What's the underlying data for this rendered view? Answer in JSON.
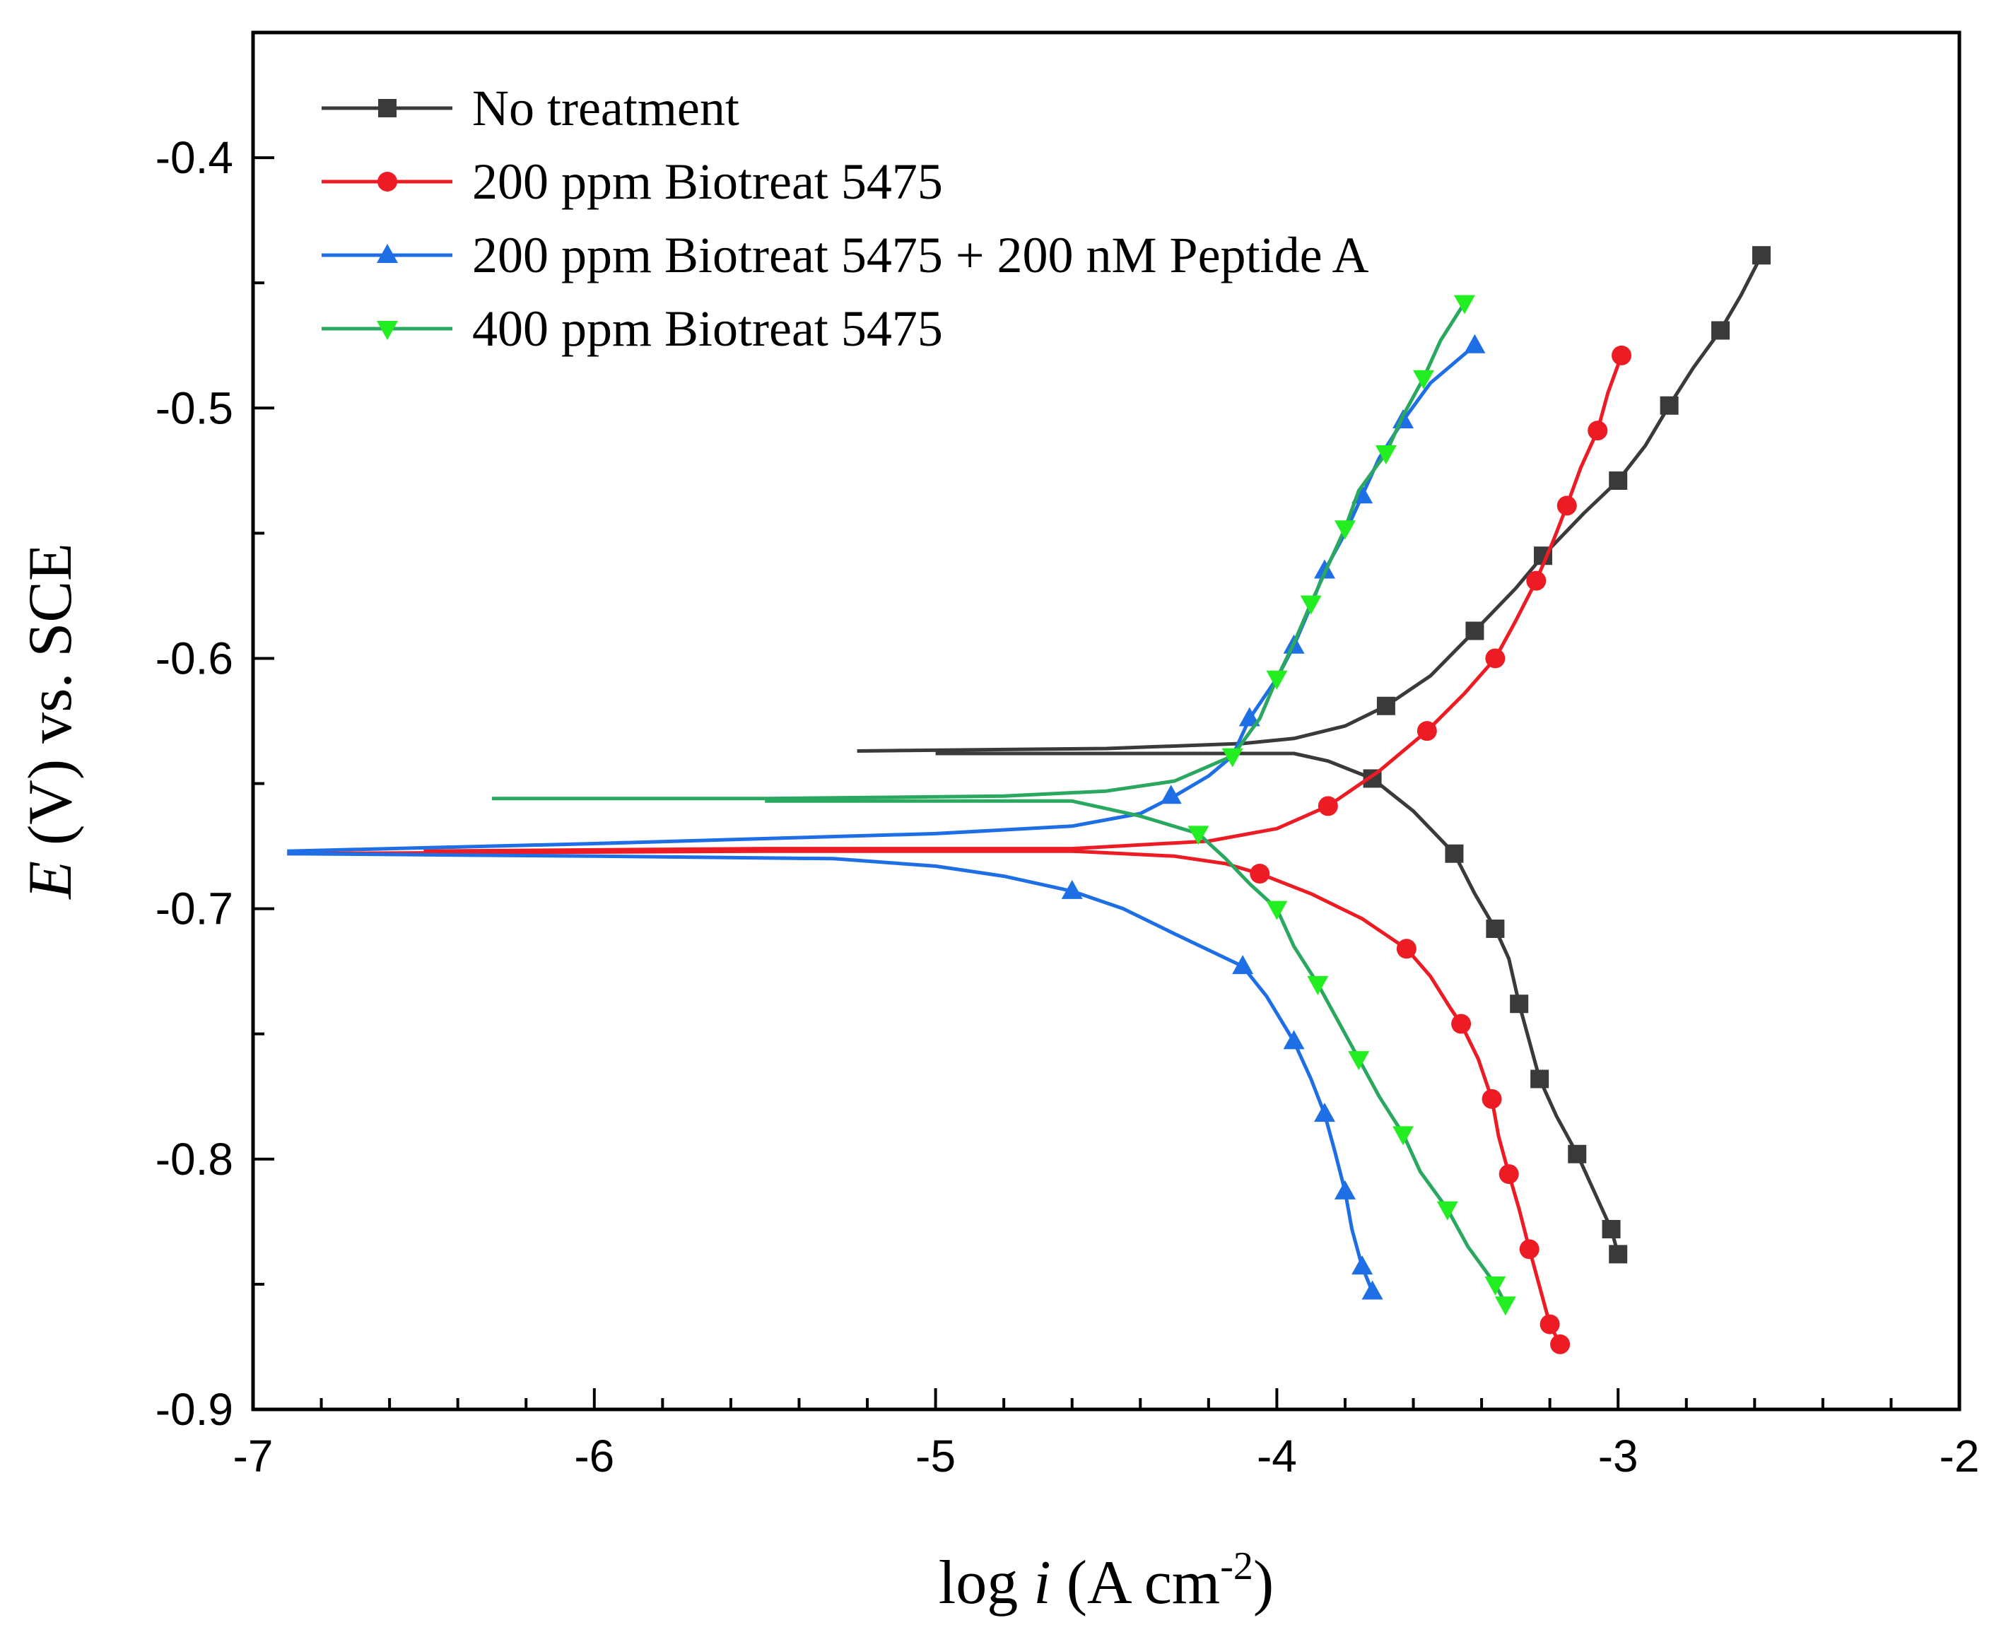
{
  "chart_data": {
    "type": "line",
    "title": "",
    "xlabel": {
      "prefix": "log ",
      "var": "i",
      "unit_open": " (A cm",
      "sup": "-2",
      "unit_close": ")"
    },
    "ylabel": {
      "var": "E",
      "rest": " (V) vs. SCE"
    },
    "xlim": [
      -7,
      -2
    ],
    "ylim": [
      -0.9,
      -0.35
    ],
    "xticks": [
      -7,
      -6,
      -5,
      -4,
      -3,
      -2
    ],
    "xtick_labels": [
      "-7",
      "-6",
      "-5",
      "-4",
      "-3",
      "-2"
    ],
    "yticks": [
      -0.9,
      -0.8,
      -0.7,
      -0.6,
      -0.5,
      -0.4
    ],
    "ytick_labels": [
      "-0.9",
      "-0.8",
      "-0.7",
      "-0.6",
      "-0.5",
      "-0.4"
    ],
    "legend_position": "top-left",
    "series": [
      {
        "name": "No treatment",
        "color": "#3a3a3a",
        "marker": "square",
        "anodic": [
          [
            -5.23,
            -0.637
          ],
          [
            -4.5,
            -0.636
          ],
          [
            -4.1,
            -0.634
          ],
          [
            -3.95,
            -0.632
          ],
          [
            -3.8,
            -0.627
          ],
          [
            -3.68,
            -0.619
          ],
          [
            -3.55,
            -0.607
          ],
          [
            -3.42,
            -0.589
          ],
          [
            -3.3,
            -0.572
          ],
          [
            -3.22,
            -0.559
          ],
          [
            -3.1,
            -0.542
          ],
          [
            -3.0,
            -0.529
          ],
          [
            -2.92,
            -0.515
          ],
          [
            -2.85,
            -0.499
          ],
          [
            -2.78,
            -0.484
          ],
          [
            -2.7,
            -0.469
          ],
          [
            -2.64,
            -0.455
          ],
          [
            -2.58,
            -0.439
          ]
        ],
        "cathodic": [
          [
            -5.0,
            -0.638
          ],
          [
            -4.5,
            -0.638
          ],
          [
            -4.1,
            -0.638
          ],
          [
            -3.95,
            -0.638
          ],
          [
            -3.85,
            -0.641
          ],
          [
            -3.72,
            -0.648
          ],
          [
            -3.6,
            -0.661
          ],
          [
            -3.48,
            -0.678
          ],
          [
            -3.42,
            -0.694
          ],
          [
            -3.36,
            -0.708
          ],
          [
            -3.32,
            -0.72
          ],
          [
            -3.29,
            -0.738
          ],
          [
            -3.26,
            -0.753
          ],
          [
            -3.23,
            -0.768
          ],
          [
            -3.18,
            -0.783
          ],
          [
            -3.12,
            -0.798
          ],
          [
            -3.07,
            -0.813
          ],
          [
            -3.02,
            -0.828
          ],
          [
            -3.0,
            -0.838
          ]
        ],
        "markers": [
          [
            -2.58,
            -0.439
          ],
          [
            -2.7,
            -0.469
          ],
          [
            -2.85,
            -0.499
          ],
          [
            -3.0,
            -0.529
          ],
          [
            -3.22,
            -0.559
          ],
          [
            -3.42,
            -0.589
          ],
          [
            -3.68,
            -0.619
          ],
          [
            -3.72,
            -0.648
          ],
          [
            -3.48,
            -0.678
          ],
          [
            -3.36,
            -0.708
          ],
          [
            -3.29,
            -0.738
          ],
          [
            -3.23,
            -0.768
          ],
          [
            -3.12,
            -0.798
          ],
          [
            -3.02,
            -0.828
          ],
          [
            -3.0,
            -0.838
          ]
        ]
      },
      {
        "name": "200 ppm Biotreat 5475",
        "color": "#ed1c24",
        "marker": "circle",
        "anodic": [
          [
            -6.5,
            -0.677
          ],
          [
            -5.5,
            -0.676
          ],
          [
            -4.6,
            -0.676
          ],
          [
            -4.2,
            -0.673
          ],
          [
            -4.0,
            -0.668
          ],
          [
            -3.85,
            -0.659
          ],
          [
            -3.7,
            -0.645
          ],
          [
            -3.56,
            -0.629
          ],
          [
            -3.45,
            -0.614
          ],
          [
            -3.36,
            -0.6
          ],
          [
            -3.3,
            -0.585
          ],
          [
            -3.24,
            -0.569
          ],
          [
            -3.19,
            -0.553
          ],
          [
            -3.15,
            -0.539
          ],
          [
            -3.11,
            -0.524
          ],
          [
            -3.06,
            -0.509
          ],
          [
            -3.03,
            -0.494
          ],
          [
            -2.99,
            -0.479
          ]
        ],
        "cathodic": [
          [
            -6.9,
            -0.678
          ],
          [
            -5.5,
            -0.677
          ],
          [
            -4.6,
            -0.677
          ],
          [
            -4.3,
            -0.679
          ],
          [
            -4.15,
            -0.682
          ],
          [
            -4.05,
            -0.686
          ],
          [
            -3.9,
            -0.694
          ],
          [
            -3.75,
            -0.704
          ],
          [
            -3.62,
            -0.716
          ],
          [
            -3.55,
            -0.727
          ],
          [
            -3.49,
            -0.74
          ],
          [
            -3.46,
            -0.746
          ],
          [
            -3.41,
            -0.76
          ],
          [
            -3.37,
            -0.776
          ],
          [
            -3.35,
            -0.791
          ],
          [
            -3.32,
            -0.806
          ],
          [
            -3.29,
            -0.82
          ],
          [
            -3.26,
            -0.836
          ],
          [
            -3.23,
            -0.851
          ],
          [
            -3.2,
            -0.866
          ],
          [
            -3.17,
            -0.874
          ]
        ],
        "markers": [
          [
            -2.99,
            -0.479
          ],
          [
            -3.06,
            -0.509
          ],
          [
            -3.15,
            -0.539
          ],
          [
            -3.24,
            -0.569
          ],
          [
            -3.36,
            -0.6
          ],
          [
            -3.56,
            -0.629
          ],
          [
            -3.85,
            -0.659
          ],
          [
            -4.05,
            -0.686
          ],
          [
            -3.62,
            -0.716
          ],
          [
            -3.46,
            -0.746
          ],
          [
            -3.37,
            -0.776
          ],
          [
            -3.32,
            -0.806
          ],
          [
            -3.26,
            -0.836
          ],
          [
            -3.2,
            -0.866
          ],
          [
            -3.17,
            -0.874
          ]
        ]
      },
      {
        "name": "200 ppm Biotreat 5475 + 200 nM Peptide A",
        "color": "#1e6fe6",
        "marker": "triangle-up",
        "anodic": [
          [
            -6.9,
            -0.677
          ],
          [
            -6.0,
            -0.674
          ],
          [
            -5.0,
            -0.67
          ],
          [
            -4.6,
            -0.667
          ],
          [
            -4.4,
            -0.662
          ],
          [
            -4.3,
            -0.655
          ],
          [
            -4.2,
            -0.647
          ],
          [
            -4.13,
            -0.639
          ],
          [
            -4.08,
            -0.624
          ],
          [
            -4.0,
            -0.608
          ],
          [
            -3.95,
            -0.595
          ],
          [
            -3.9,
            -0.579
          ],
          [
            -3.86,
            -0.565
          ],
          [
            -3.8,
            -0.55
          ],
          [
            -3.75,
            -0.535
          ],
          [
            -3.7,
            -0.52
          ],
          [
            -3.63,
            -0.505
          ],
          [
            -3.55,
            -0.49
          ],
          [
            -3.42,
            -0.475
          ]
        ],
        "cathodic": [
          [
            -6.9,
            -0.678
          ],
          [
            -6.0,
            -0.679
          ],
          [
            -5.3,
            -0.68
          ],
          [
            -5.0,
            -0.683
          ],
          [
            -4.8,
            -0.687
          ],
          [
            -4.6,
            -0.693
          ],
          [
            -4.45,
            -0.7
          ],
          [
            -4.3,
            -0.71
          ],
          [
            -4.1,
            -0.723
          ],
          [
            -4.03,
            -0.735
          ],
          [
            -3.95,
            -0.753
          ],
          [
            -3.9,
            -0.768
          ],
          [
            -3.86,
            -0.782
          ],
          [
            -3.83,
            -0.797
          ],
          [
            -3.8,
            -0.813
          ],
          [
            -3.78,
            -0.828
          ],
          [
            -3.75,
            -0.843
          ],
          [
            -3.72,
            -0.853
          ]
        ],
        "markers": [
          [
            -3.42,
            -0.475
          ],
          [
            -3.63,
            -0.505
          ],
          [
            -3.75,
            -0.535
          ],
          [
            -3.86,
            -0.565
          ],
          [
            -3.95,
            -0.595
          ],
          [
            -4.08,
            -0.624
          ],
          [
            -4.31,
            -0.655
          ],
          [
            -4.6,
            -0.693
          ],
          [
            -4.1,
            -0.723
          ],
          [
            -3.95,
            -0.753
          ],
          [
            -3.86,
            -0.782
          ],
          [
            -3.8,
            -0.813
          ],
          [
            -3.75,
            -0.843
          ],
          [
            -3.72,
            -0.853
          ]
        ]
      },
      {
        "name": "400 ppm Biotreat 5475",
        "color": "#2aa860",
        "marker_color": "#22ee22",
        "marker": "triangle-down",
        "anodic": [
          [
            -6.3,
            -0.656
          ],
          [
            -5.5,
            -0.656
          ],
          [
            -4.8,
            -0.655
          ],
          [
            -4.5,
            -0.653
          ],
          [
            -4.3,
            -0.649
          ],
          [
            -4.13,
            -0.639
          ],
          [
            -4.05,
            -0.624
          ],
          [
            -4.0,
            -0.608
          ],
          [
            -3.95,
            -0.594
          ],
          [
            -3.9,
            -0.578
          ],
          [
            -3.85,
            -0.563
          ],
          [
            -3.8,
            -0.548
          ],
          [
            -3.76,
            -0.533
          ],
          [
            -3.68,
            -0.518
          ],
          [
            -3.63,
            -0.503
          ],
          [
            -3.57,
            -0.488
          ],
          [
            -3.52,
            -0.473
          ],
          [
            -3.45,
            -0.458
          ]
        ],
        "cathodic": [
          [
            -5.5,
            -0.657
          ],
          [
            -5.0,
            -0.657
          ],
          [
            -4.6,
            -0.657
          ],
          [
            -4.4,
            -0.663
          ],
          [
            -4.23,
            -0.67
          ],
          [
            -4.15,
            -0.68
          ],
          [
            -4.08,
            -0.69
          ],
          [
            -4.0,
            -0.7
          ],
          [
            -3.95,
            -0.715
          ],
          [
            -3.88,
            -0.73
          ],
          [
            -3.82,
            -0.745
          ],
          [
            -3.76,
            -0.76
          ],
          [
            -3.7,
            -0.775
          ],
          [
            -3.63,
            -0.79
          ],
          [
            -3.58,
            -0.805
          ],
          [
            -3.5,
            -0.82
          ],
          [
            -3.44,
            -0.835
          ],
          [
            -3.36,
            -0.85
          ],
          [
            -3.33,
            -0.858
          ]
        ],
        "markers": [
          [
            -3.45,
            -0.458
          ],
          [
            -3.57,
            -0.488
          ],
          [
            -3.68,
            -0.518
          ],
          [
            -3.8,
            -0.548
          ],
          [
            -3.9,
            -0.578
          ],
          [
            -4.0,
            -0.608
          ],
          [
            -4.13,
            -0.639
          ],
          [
            -4.23,
            -0.67
          ],
          [
            -4.0,
            -0.7
          ],
          [
            -3.88,
            -0.73
          ],
          [
            -3.76,
            -0.76
          ],
          [
            -3.63,
            -0.79
          ],
          [
            -3.5,
            -0.82
          ],
          [
            -3.36,
            -0.85
          ],
          [
            -3.33,
            -0.858
          ]
        ]
      }
    ]
  }
}
